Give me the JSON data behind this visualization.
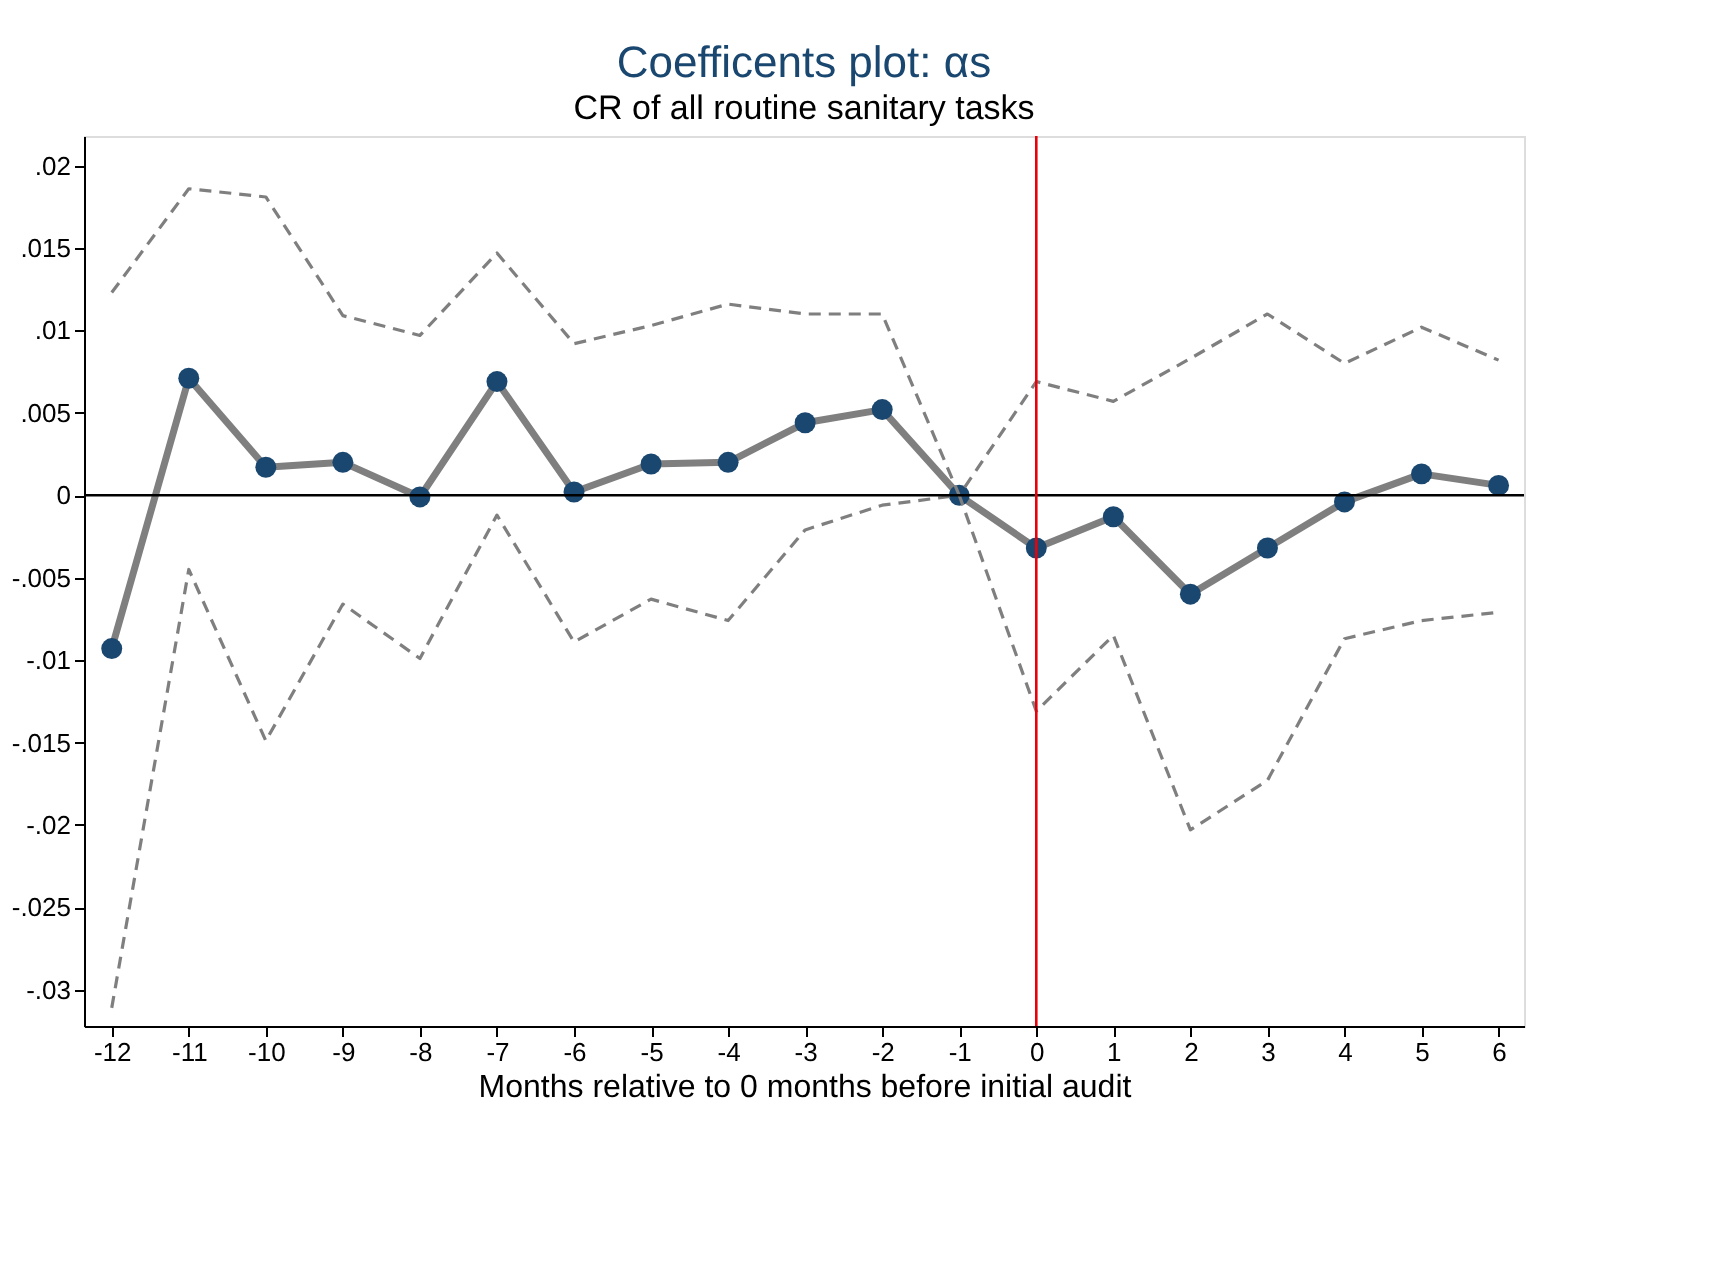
{
  "chart_data": {
    "type": "line",
    "title": "Coefficents plot: αs",
    "subtitle": "CR of all routine sanitary tasks",
    "xlabel": "Months relative to 0 months before initial audit",
    "x": [
      -12,
      -11,
      -10,
      -9,
      -8,
      -7,
      -6,
      -5,
      -4,
      -3,
      -2,
      -1,
      0,
      1,
      2,
      3,
      4,
      5,
      6
    ],
    "series": [
      {
        "color": "#7f7f7f",
        "marker": "circle",
        "line_style": "solid",
        "colors": [
          "#1a476f",
          "#1a476f",
          "#1a476f",
          "#1a476f",
          "#1a476f",
          "#1a476f",
          "#1a476f",
          "#1a476f",
          "#1a476f",
          "#1a476f",
          "#1a476f",
          "#1a476f",
          "#1a476f",
          "#1a476f",
          "#1a476f",
          "#1a476f",
          "#1a476f",
          "#1a476f",
          "#1a476f"
        ],
        "values": [
          -0.0093,
          0.0071,
          0.0017,
          0.002,
          -0.0001,
          0.0069,
          0.0002,
          0.0019,
          0.002,
          0.0044,
          0.0052,
          0.0,
          -0.0032,
          -0.0013,
          -0.006,
          -0.0032,
          -0.0004,
          0.0013,
          0.0006
        ]
      },
      {
        "color": "#7f7f7f",
        "marker": "none",
        "line_style": "dashed",
        "values": [
          0.0123,
          0.0186,
          0.0181,
          0.0109,
          0.0097,
          0.0147,
          0.0092,
          0.0103,
          0.0116,
          0.011,
          0.011,
          0.0,
          0.0069,
          0.0057,
          0.0083,
          0.011,
          0.008,
          0.0102,
          0.0082
        ]
      },
      {
        "color": "#7f7f7f",
        "marker": "none",
        "line_style": "dashed",
        "values": [
          -0.0311,
          -0.0045,
          -0.0149,
          -0.0066,
          -0.0099,
          -0.0012,
          -0.0089,
          -0.0063,
          -0.0076,
          -0.0021,
          -0.0006,
          0.0,
          -0.0131,
          -0.0085,
          -0.0203,
          -0.0173,
          -0.0087,
          -0.0076,
          -0.0071
        ]
      }
    ],
    "xlim": [
      -12.36,
      6.33
    ],
    "xticks": [
      -12,
      -11,
      -10,
      -9,
      -8,
      -7,
      -6,
      -5,
      -4,
      -3,
      -2,
      -1,
      0,
      1,
      2,
      3,
      4,
      5,
      6
    ],
    "ylim": [
      -0.0322,
      0.0218
    ],
    "yticks": [
      {
        "value": 0.02,
        "label": ".02"
      },
      {
        "value": 0.015,
        "label": ".015"
      },
      {
        "value": 0.01,
        "label": ".01"
      },
      {
        "value": 0.005,
        "label": ".005"
      },
      0,
      {
        "value": -0.005,
        "label": "-.005"
      },
      {
        "value": -0.01,
        "label": "-.01"
      },
      {
        "value": -0.015,
        "label": "-.015"
      },
      {
        "value": -0.02,
        "label": "-.02"
      },
      {
        "value": -0.025,
        "label": "-.025"
      },
      {
        "value": -0.03,
        "label": "-.03"
      }
    ],
    "ref_lines": [
      {
        "axis": "y",
        "value": 0,
        "color": "#000000"
      },
      {
        "axis": "x",
        "value": 0,
        "color": "#e8000b"
      }
    ],
    "grid": false
  }
}
